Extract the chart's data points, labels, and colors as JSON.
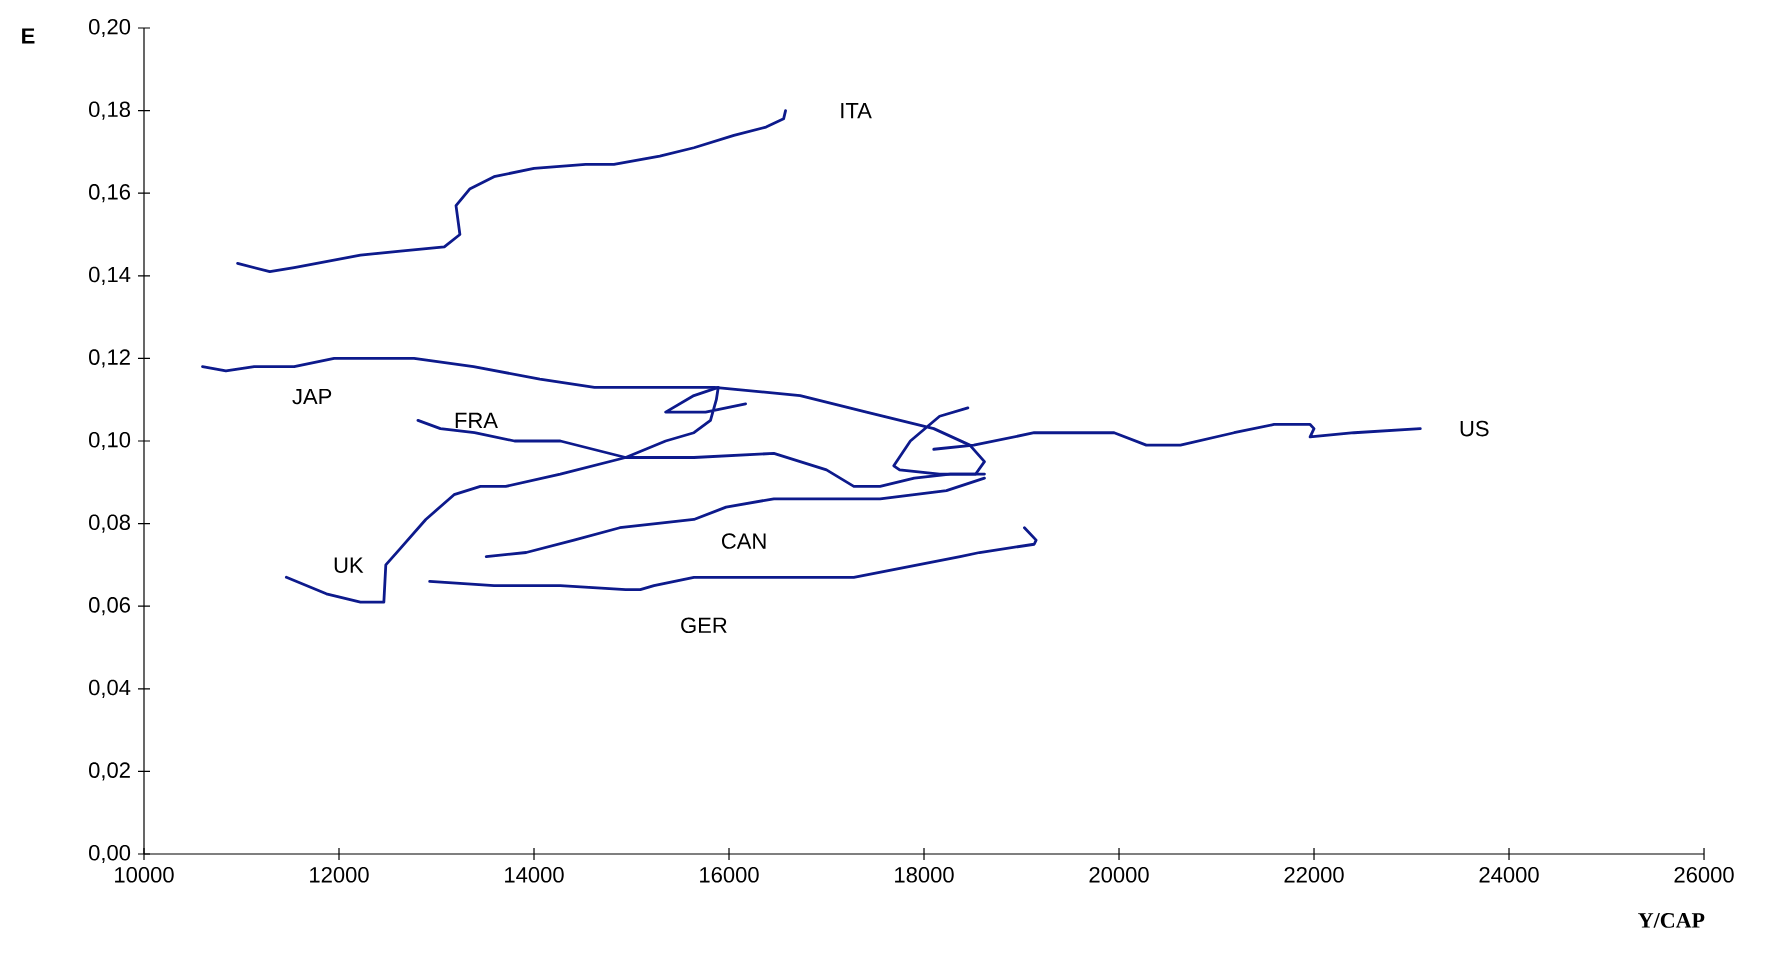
{
  "chart_data": {
    "type": "line",
    "xlabel": "Y/CAP",
    "ylabel": "E",
    "marker": "none",
    "line_style": "solid",
    "xlim": [
      10000,
      26000
    ],
    "xticks": [
      10000,
      12000,
      14000,
      16000,
      18000,
      20000,
      22000,
      24000,
      26000
    ],
    "ylim": [
      0,
      0.2
    ],
    "yticks": [
      {
        "value": 0,
        "label": "0,00"
      },
      {
        "value": 0.02,
        "label": "0,02"
      },
      {
        "value": 0.04,
        "label": "0,04"
      },
      {
        "value": 0.06,
        "label": "0,06"
      },
      {
        "value": 0.08,
        "label": "0,08"
      },
      {
        "value": 0.1,
        "label": "0,10"
      },
      {
        "value": 0.12,
        "label": "0,12"
      },
      {
        "value": 0.14,
        "label": "0,14"
      },
      {
        "value": 0.16,
        "label": "0,16"
      },
      {
        "value": 0.18,
        "label": "0,18"
      },
      {
        "value": 0.2,
        "label": "0,20"
      }
    ],
    "series": [
      {
        "name": "ITA",
        "color": "#0d1a8c",
        "x": [
          10960,
          11290,
          11540,
          12220,
          12630,
          13080,
          13240,
          13200,
          13340,
          13590,
          14000,
          14530,
          14820,
          15290,
          15640,
          16050,
          16380,
          16560,
          16580
        ],
        "values": [
          0.143,
          0.141,
          0.142,
          0.145,
          0.146,
          0.147,
          0.15,
          0.157,
          0.161,
          0.164,
          0.166,
          0.167,
          0.167,
          0.169,
          0.171,
          0.174,
          0.176,
          0.178,
          0.18
        ]
      },
      {
        "name": "JAP",
        "color": "#0d1a8c",
        "x": [
          10600,
          10840,
          11130,
          11540,
          11950,
          12770,
          13380,
          14060,
          14620,
          15850,
          16730,
          17410,
          18100,
          18470,
          18620,
          18530,
          18160,
          17750,
          17690,
          17860,
          18160,
          18450
        ],
        "values": [
          0.118,
          0.117,
          0.118,
          0.118,
          0.12,
          0.12,
          0.118,
          0.115,
          0.113,
          0.113,
          0.111,
          0.107,
          0.103,
          0.099,
          0.095,
          0.092,
          0.092,
          0.093,
          0.094,
          0.1,
          0.106,
          0.108
        ]
      },
      {
        "name": "FRA",
        "color": "#0d1a8c",
        "x": [
          12810,
          13040,
          13390,
          13800,
          14270,
          14940,
          15640,
          16460,
          17000,
          17280,
          17550,
          17900,
          18270,
          18620
        ],
        "values": [
          0.105,
          0.103,
          0.102,
          0.1,
          0.1,
          0.096,
          0.096,
          0.097,
          0.093,
          0.089,
          0.089,
          0.091,
          0.092,
          0.092
        ]
      },
      {
        "name": "UK",
        "color": "#0d1a8c",
        "x": [
          11460,
          11870,
          12220,
          12460,
          12480,
          12630,
          12890,
          13180,
          13450,
          13710,
          14270,
          14940,
          15350,
          15640,
          15810,
          15870,
          15890,
          15640,
          15350,
          15760,
          16170
        ],
        "values": [
          0.067,
          0.063,
          0.061,
          0.061,
          0.07,
          0.074,
          0.081,
          0.087,
          0.089,
          0.089,
          0.092,
          0.096,
          0.1,
          0.102,
          0.105,
          0.11,
          0.113,
          0.111,
          0.107,
          0.107,
          0.109
        ]
      },
      {
        "name": "CAN",
        "color": "#0d1a8c",
        "x": [
          13510,
          13920,
          14410,
          14880,
          15250,
          15640,
          15970,
          16460,
          17000,
          17550,
          17900,
          18230,
          18620
        ],
        "values": [
          0.072,
          0.073,
          0.076,
          0.079,
          0.08,
          0.081,
          0.084,
          0.086,
          0.086,
          0.086,
          0.087,
          0.088,
          0.091
        ]
      },
      {
        "name": "GER",
        "color": "#0d1a8c",
        "x": [
          12930,
          13590,
          14270,
          14940,
          15090,
          15230,
          15640,
          16320,
          17280,
          18370,
          18570,
          19130,
          19150,
          19030
        ],
        "values": [
          0.066,
          0.065,
          0.065,
          0.064,
          0.064,
          0.065,
          0.067,
          0.067,
          0.067,
          0.072,
          0.073,
          0.075,
          0.076,
          0.079
        ]
      },
      {
        "name": "US",
        "color": "#0d1a8c",
        "x": [
          18100,
          18510,
          19130,
          19460,
          19950,
          20280,
          20630,
          21180,
          21590,
          21960,
          22000,
          21960,
          22410,
          23090
        ],
        "values": [
          0.098,
          0.099,
          0.102,
          0.102,
          0.102,
          0.099,
          0.099,
          0.102,
          0.104,
          0.104,
          0.103,
          0.101,
          0.102,
          0.103
        ]
      }
    ]
  }
}
